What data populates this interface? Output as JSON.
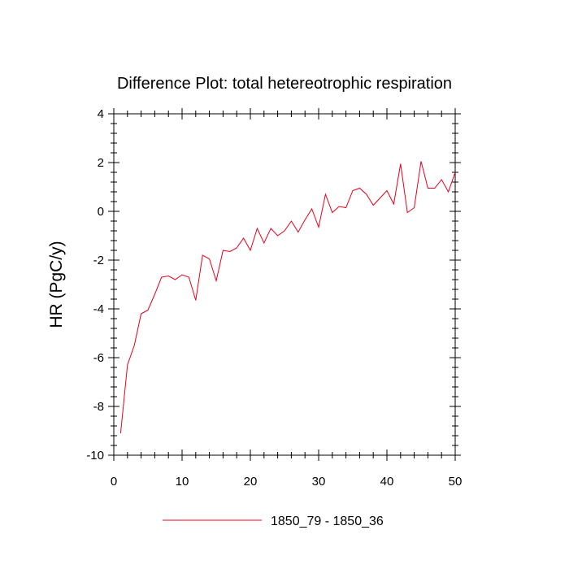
{
  "chart_data": {
    "type": "line",
    "title": "Difference Plot: total hetereotrophic respiration",
    "xlabel": "",
    "ylabel": "HR  (PgC/y)",
    "xlim": [
      0,
      50
    ],
    "ylim": [
      -10,
      4
    ],
    "xticks": [
      0,
      10,
      20,
      30,
      40,
      50
    ],
    "yticks": [
      -10,
      -8,
      -6,
      -4,
      -2,
      0,
      2,
      4
    ],
    "grid": false,
    "legend_position": "bottom-center",
    "series": [
      {
        "name": "1850_79 - 1850_36",
        "color": "#e8001c",
        "x": [
          1,
          2,
          3,
          4,
          5,
          6,
          7,
          8,
          9,
          10,
          11,
          12,
          13,
          14,
          15,
          16,
          17,
          18,
          19,
          20,
          21,
          22,
          23,
          24,
          25,
          26,
          27,
          28,
          29,
          30,
          31,
          32,
          33,
          34,
          35,
          36,
          37,
          38,
          39,
          40,
          41,
          42,
          43,
          44,
          45,
          46,
          47,
          48,
          49,
          50
        ],
        "values": [
          -9.1,
          -6.3,
          -5.5,
          -4.2,
          -4.05,
          -3.4,
          -2.7,
          -2.65,
          -2.8,
          -2.6,
          -2.7,
          -3.65,
          -1.8,
          -1.95,
          -2.85,
          -1.6,
          -1.65,
          -1.5,
          -1.1,
          -1.6,
          -0.7,
          -1.3,
          -0.7,
          -1.0,
          -0.8,
          -0.4,
          -0.85,
          -0.35,
          0.1,
          -0.65,
          0.7,
          -0.05,
          0.2,
          0.15,
          0.85,
          0.95,
          0.7,
          0.25,
          0.55,
          0.85,
          0.3,
          1.95,
          -0.05,
          0.15,
          2.05,
          0.95,
          0.95,
          1.3,
          0.8,
          1.6
        ]
      }
    ]
  }
}
